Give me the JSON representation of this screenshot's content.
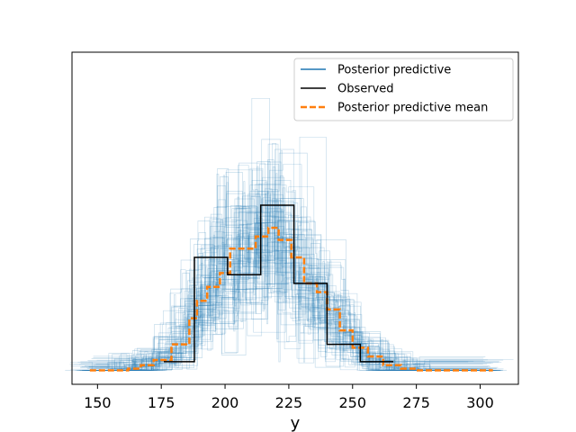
{
  "chart_data": {
    "type": "histogram-step",
    "title": "",
    "xlabel": "y",
    "ylabel": "",
    "xlim": [
      140,
      315
    ],
    "ylim": [
      -0.0008,
      0.0183
    ],
    "xticks": [
      150,
      175,
      200,
      225,
      250,
      275,
      300
    ],
    "yticks_shown": false,
    "grid": false,
    "legend_position": "top-right",
    "series": [
      {
        "name": "Posterior predictive",
        "color": "#1f77b4",
        "style": "thin translucent step lines (many posterior predictive draws)",
        "alpha": 0.25
      },
      {
        "name": "Observed",
        "color": "#000000",
        "style": "solid step",
        "edges": [
          176,
          188,
          201,
          214,
          227,
          240,
          253,
          266
        ],
        "values": [
          0.0005,
          0.0065,
          0.0055,
          0.0095,
          0.005,
          0.0015,
          0.0005
        ]
      },
      {
        "name": "Posterior predictive mean",
        "color": "#ff7f0e",
        "style": "dashed step",
        "edges": [
          147,
          162,
          167,
          172,
          179,
          186,
          189,
          193,
          198,
          202,
          207,
          212,
          217,
          221,
          226,
          231,
          236,
          240,
          245,
          250,
          256,
          262,
          269,
          275,
          305
        ],
        "values": [
          0,
          0.0001,
          0.0003,
          0.0006,
          0.0015,
          0.003,
          0.004,
          0.0048,
          0.0056,
          0.007,
          0.007,
          0.0077,
          0.0082,
          0.0075,
          0.0065,
          0.005,
          0.0045,
          0.0035,
          0.0023,
          0.0013,
          0.0008,
          0.0003,
          0.0001,
          0
        ]
      }
    ]
  }
}
